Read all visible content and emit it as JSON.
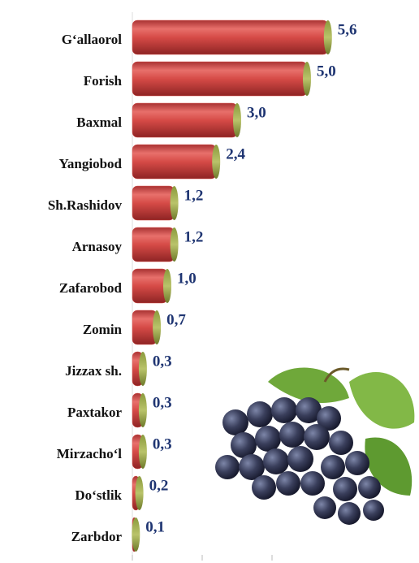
{
  "chart_data": {
    "type": "hbar",
    "categories": [
      "G‘allaorol",
      "Forish",
      "Baxmal",
      "Yangiobod",
      "Sh.Rashidov",
      "Arnasoy",
      "Zafarobod",
      "Zomin",
      "Jizzax sh.",
      "Paxtakor",
      "Mirzacho‘l",
      "Do‘stlik",
      "Zarbdor"
    ],
    "values": [
      5.6,
      5.0,
      3.0,
      2.4,
      1.2,
      1.2,
      1.0,
      0.7,
      0.3,
      0.3,
      0.3,
      0.2,
      0.1
    ],
    "value_labels": [
      "5,6",
      "5,0",
      "3,0",
      "2,4",
      "1,2",
      "1,2",
      "1,0",
      "0,7",
      "0,3",
      "0,3",
      "0,3",
      "0,2",
      "0,1"
    ],
    "color": "#d9534f",
    "xlim": [
      0,
      8
    ],
    "xticks": [
      0,
      2,
      4
    ]
  }
}
